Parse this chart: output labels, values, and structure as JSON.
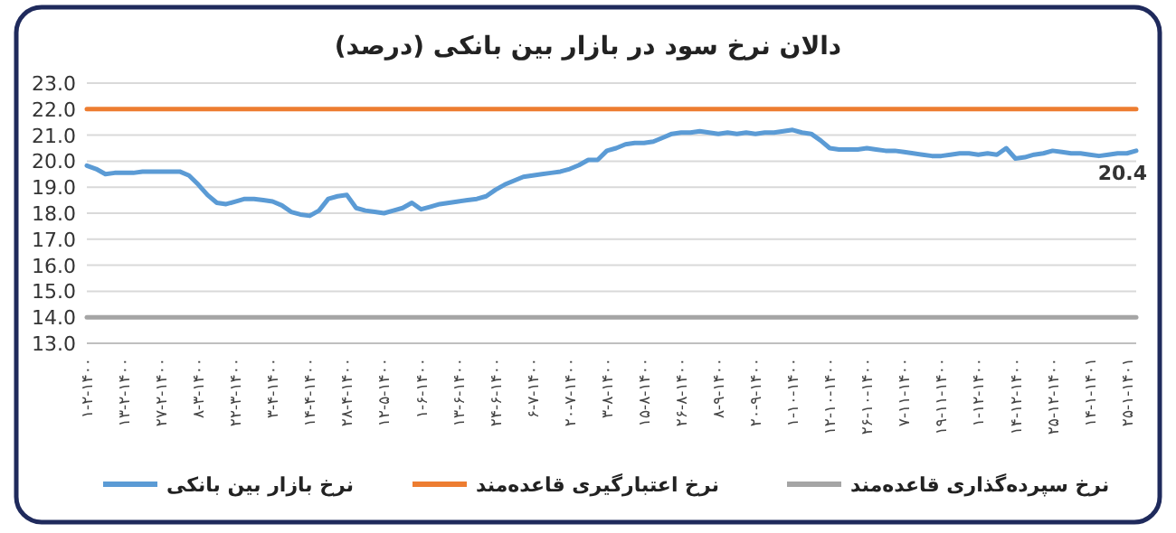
{
  "chart_data": {
    "type": "line",
    "title": "دالان نرخ سود در بازار بین بانکی (درصد)",
    "categories": [
      "۱-۲-۱۴۰۰",
      null,
      null,
      null,
      "۱۳-۲-۱۴۰۰",
      null,
      null,
      null,
      "۲۷-۲-۱۴۰۰",
      null,
      null,
      null,
      "۸-۳-۱۴۰۰",
      null,
      null,
      null,
      "۲۲-۳-۱۴۰۰",
      null,
      null,
      null,
      "۳-۴-۱۴۰۰",
      null,
      null,
      null,
      "۱۴-۴-۱۴۰۰",
      null,
      null,
      null,
      "۲۸-۴-۱۴۰۰",
      null,
      null,
      null,
      "۱۲-۵-۱۴۰۰",
      null,
      null,
      null,
      "۱-۶-۱۴۰۰",
      null,
      null,
      null,
      "۱۳-۶-۱۴۰۰",
      null,
      null,
      null,
      "۲۴-۶-۱۴۰۰",
      null,
      null,
      null,
      "۶-۷-۱۴۰۰",
      null,
      null,
      null,
      "۲۰-۷-۱۴۰۰",
      null,
      null,
      null,
      "۳-۸-۱۴۰۰",
      null,
      null,
      null,
      "۱۵-۸-۱۴۰۰",
      null,
      null,
      null,
      "۲۶-۸-۱۴۰۰",
      null,
      null,
      null,
      "۸-۹-۱۴۰۰",
      null,
      null,
      null,
      "۲۰-۹-۱۴۰۰",
      null,
      null,
      null,
      "۱-۱۰-۱۴۰۰",
      null,
      null,
      null,
      "۱۲-۱۰-۱۴۰۰",
      null,
      null,
      null,
      "۲۶-۱۰-۱۴۰۰",
      null,
      null,
      null,
      "۷-۱۱-۱۴۰۰",
      null,
      null,
      null,
      "۱۹-۱۱-۱۴۰۰",
      null,
      null,
      null,
      "۱-۱۲-۱۴۰۰",
      null,
      null,
      null,
      "۱۴-۱۲-۱۴۰۰",
      null,
      null,
      null,
      "۲۵-۱۲-۱۴۰۰",
      null,
      null,
      null,
      "۱۴-۱-۱۴۰۱",
      null,
      null,
      null,
      "۲۵-۱-۱۴۰۱",
      null
    ],
    "series": [
      {
        "name": "نرخ بازار بین بانکی",
        "color": "#5b9bd5",
        "values": [
          19.83,
          19.7,
          19.5,
          19.55,
          19.55,
          19.55,
          19.6,
          19.6,
          19.6,
          19.6,
          19.6,
          19.45,
          19.1,
          18.7,
          18.4,
          18.35,
          18.45,
          18.55,
          18.55,
          18.5,
          18.45,
          18.3,
          18.05,
          17.95,
          17.9,
          18.1,
          18.55,
          18.65,
          18.7,
          18.2,
          18.1,
          18.05,
          18.0,
          18.1,
          18.2,
          18.4,
          18.15,
          18.25,
          18.35,
          18.4,
          18.45,
          18.5,
          18.55,
          18.65,
          18.9,
          19.1,
          19.25,
          19.4,
          19.45,
          19.5,
          19.55,
          19.6,
          19.7,
          19.85,
          20.05,
          20.05,
          20.4,
          20.5,
          20.65,
          20.7,
          20.7,
          20.75,
          20.9,
          21.05,
          21.1,
          21.1,
          21.15,
          21.1,
          21.05,
          21.1,
          21.05,
          21.1,
          21.05,
          21.1,
          21.1,
          21.15,
          21.2,
          21.1,
          21.05,
          20.8,
          20.5,
          20.45,
          20.45,
          20.45,
          20.5,
          20.45,
          20.4,
          20.4,
          20.35,
          20.3,
          20.25,
          20.2,
          20.2,
          20.25,
          20.3,
          20.3,
          20.25,
          20.3,
          20.25,
          20.5,
          20.1,
          20.15,
          20.25,
          20.3,
          20.4,
          20.35,
          20.3,
          20.3,
          20.25,
          20.2,
          20.25,
          20.3,
          20.3,
          20.4
        ],
        "value_labels": [
          null,
          null,
          null,
          null,
          null,
          null,
          null,
          null,
          null,
          null,
          null,
          null,
          null,
          null,
          null,
          null,
          null,
          null,
          null,
          null,
          null,
          null,
          null,
          null,
          null,
          null,
          null,
          null,
          null,
          null,
          null,
          null,
          null,
          null,
          null,
          null,
          null,
          null,
          null,
          null,
          null,
          null,
          null,
          null,
          null,
          null,
          null,
          null,
          null,
          null,
          null,
          null,
          null,
          null,
          null,
          null,
          null,
          null,
          null,
          null,
          null,
          null,
          null,
          null,
          null,
          null,
          null,
          null,
          null,
          null,
          null,
          null,
          null,
          null,
          null,
          null,
          null,
          null,
          null,
          null,
          null,
          null,
          null,
          null,
          null,
          null,
          null,
          null,
          null,
          null,
          null,
          null,
          null,
          null,
          null,
          null,
          null,
          null,
          null,
          null,
          null,
          null,
          null,
          null,
          null,
          null,
          null,
          null,
          null,
          null,
          null,
          null,
          null,
          "20.4"
        ]
      },
      {
        "name": "نرخ اعتبارگیری قاعده‌مند",
        "color": "#ed7d31",
        "values": [
          22,
          22,
          22,
          22,
          22,
          22,
          22,
          22,
          22,
          22,
          22,
          22,
          22,
          22,
          22,
          22,
          22,
          22,
          22,
          22,
          22,
          22,
          22,
          22,
          22,
          22,
          22,
          22,
          22,
          22,
          22,
          22,
          22,
          22,
          22,
          22,
          22,
          22,
          22,
          22,
          22,
          22,
          22,
          22,
          22,
          22,
          22,
          22,
          22,
          22,
          22,
          22,
          22,
          22,
          22,
          22,
          22,
          22,
          22,
          22,
          22,
          22,
          22,
          22,
          22,
          22,
          22,
          22,
          22,
          22,
          22,
          22,
          22,
          22,
          22,
          22,
          22,
          22,
          22,
          22,
          22,
          22,
          22,
          22,
          22,
          22,
          22,
          22,
          22,
          22,
          22,
          22,
          22,
          22,
          22,
          22,
          22,
          22,
          22,
          22,
          22,
          22,
          22,
          22,
          22,
          22,
          22,
          22,
          22,
          22,
          22,
          22,
          22,
          22
        ]
      },
      {
        "name": "نرخ سپرده‌گذاری قاعده‌مند",
        "color": "#a5a5a5",
        "values": [
          14,
          14,
          14,
          14,
          14,
          14,
          14,
          14,
          14,
          14,
          14,
          14,
          14,
          14,
          14,
          14,
          14,
          14,
          14,
          14,
          14,
          14,
          14,
          14,
          14,
          14,
          14,
          14,
          14,
          14,
          14,
          14,
          14,
          14,
          14,
          14,
          14,
          14,
          14,
          14,
          14,
          14,
          14,
          14,
          14,
          14,
          14,
          14,
          14,
          14,
          14,
          14,
          14,
          14,
          14,
          14,
          14,
          14,
          14,
          14,
          14,
          14,
          14,
          14,
          14,
          14,
          14,
          14,
          14,
          14,
          14,
          14,
          14,
          14,
          14,
          14,
          14,
          14,
          14,
          14,
          14,
          14,
          14,
          14,
          14,
          14,
          14,
          14,
          14,
          14,
          14,
          14,
          14,
          14,
          14,
          14,
          14,
          14,
          14,
          14,
          14,
          14,
          14,
          14,
          14,
          14,
          14,
          14,
          14,
          14,
          14,
          14,
          14,
          14
        ]
      }
    ],
    "ylim": [
      13,
      23
    ],
    "yticks": [
      {
        "value": 13,
        "label": "13.0"
      },
      {
        "value": 14,
        "label": "14.0"
      },
      {
        "value": 15,
        "label": "15.0"
      },
      {
        "value": 16,
        "label": "16.0"
      },
      {
        "value": 17,
        "label": "17.0"
      },
      {
        "value": 18,
        "label": "18.0"
      },
      {
        "value": 19,
        "label": "19.0"
      },
      {
        "value": 20,
        "label": "20.0"
      },
      {
        "value": 21,
        "label": "21.0"
      },
      {
        "value": 22,
        "label": "22.0"
      },
      {
        "value": 23,
        "label": "23.0"
      }
    ],
    "grid": "y",
    "legend": "bottom",
    "marker": "none",
    "line_style": "solid"
  }
}
